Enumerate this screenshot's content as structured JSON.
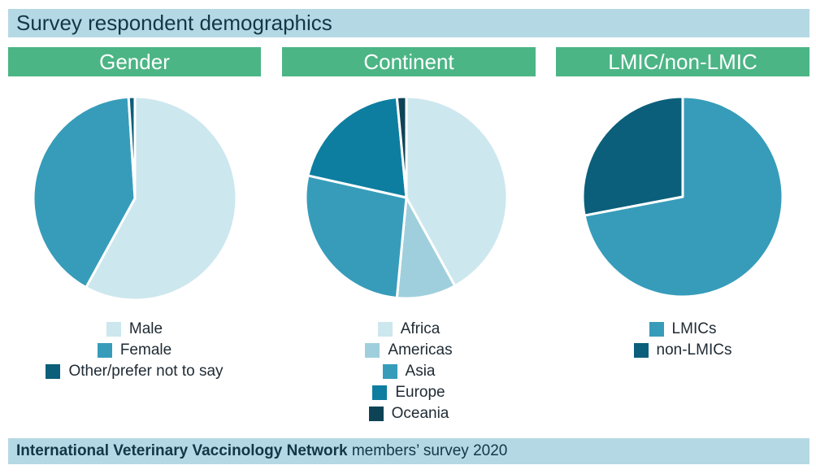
{
  "title": "Survey respondent demographics",
  "footer": {
    "org": "International Veterinary Vaccinology Network",
    "rest": " members’ survey 2020"
  },
  "chart_data": [
    {
      "type": "pie",
      "title": "Gender",
      "categories": [
        "Male",
        "Female",
        "Other/prefer not to say"
      ],
      "values": [
        58,
        41,
        1
      ],
      "colors": [
        "#cde7ee",
        "#379cba",
        "#0b5f7a"
      ]
    },
    {
      "type": "pie",
      "title": "Continent",
      "categories": [
        "Africa",
        "Americas",
        "Asia",
        "Europe",
        "Oceania"
      ],
      "values": [
        42,
        9.5,
        27,
        20,
        1.5
      ],
      "colors": [
        "#cde7ee",
        "#9fcfdc",
        "#379cba",
        "#0d7ea0",
        "#0e4356"
      ]
    },
    {
      "type": "pie",
      "title": "LMIC/non-LMIC",
      "categories": [
        "LMICs",
        "non-LMICs"
      ],
      "values": [
        72,
        28
      ],
      "colors": [
        "#379cba",
        "#0b5f7a"
      ]
    }
  ]
}
